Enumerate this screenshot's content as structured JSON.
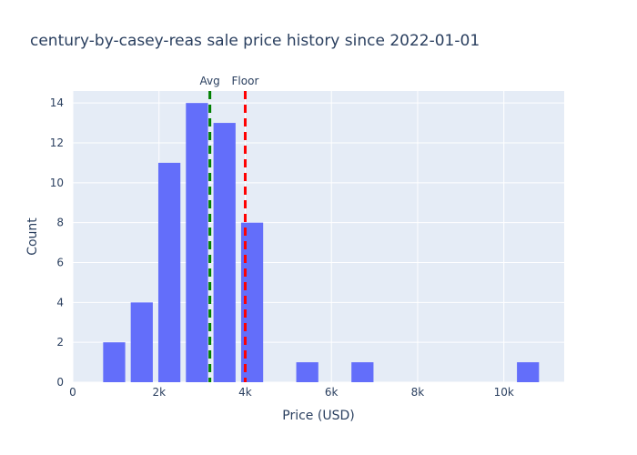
{
  "chart_data": {
    "type": "bar",
    "title": "century-by-casey-reas sale price history since 2022-01-01",
    "xlabel": "Price (USD)",
    "ylabel": "Count",
    "xlim": [
      0,
      11400
    ],
    "ylim": [
      0,
      14.6
    ],
    "xticks": [
      {
        "value": 0,
        "label": "0"
      },
      {
        "value": 2000,
        "label": "2k"
      },
      {
        "value": 4000,
        "label": "4k"
      },
      {
        "value": 6000,
        "label": "6k"
      },
      {
        "value": 8000,
        "label": "8k"
      },
      {
        "value": 10000,
        "label": "10k"
      }
    ],
    "yticks": [
      {
        "value": 0,
        "label": "0"
      },
      {
        "value": 2,
        "label": "2"
      },
      {
        "value": 4,
        "label": "4"
      },
      {
        "value": 6,
        "label": "6"
      },
      {
        "value": 8,
        "label": "8"
      },
      {
        "value": 10,
        "label": "10"
      },
      {
        "value": 12,
        "label": "12"
      },
      {
        "value": 14,
        "label": "14"
      }
    ],
    "bin_width": 640,
    "bins": [
      {
        "center": 960,
        "count": 2
      },
      {
        "center": 1600,
        "count": 4
      },
      {
        "center": 2240,
        "count": 11
      },
      {
        "center": 2880,
        "count": 14
      },
      {
        "center": 3520,
        "count": 13
      },
      {
        "center": 4160,
        "count": 8
      },
      {
        "center": 5440,
        "count": 1
      },
      {
        "center": 6720,
        "count": 1
      },
      {
        "center": 10560,
        "count": 1
      }
    ],
    "bar_color": "#636efa",
    "grid": true,
    "plot_background": "#e5ecf6",
    "reference_lines": [
      {
        "label": "Avg",
        "x": 3180,
        "color": "#008000",
        "style": "dashed"
      },
      {
        "label": "Floor",
        "x": 4000,
        "color": "#ff0000",
        "style": "dashed"
      }
    ]
  }
}
